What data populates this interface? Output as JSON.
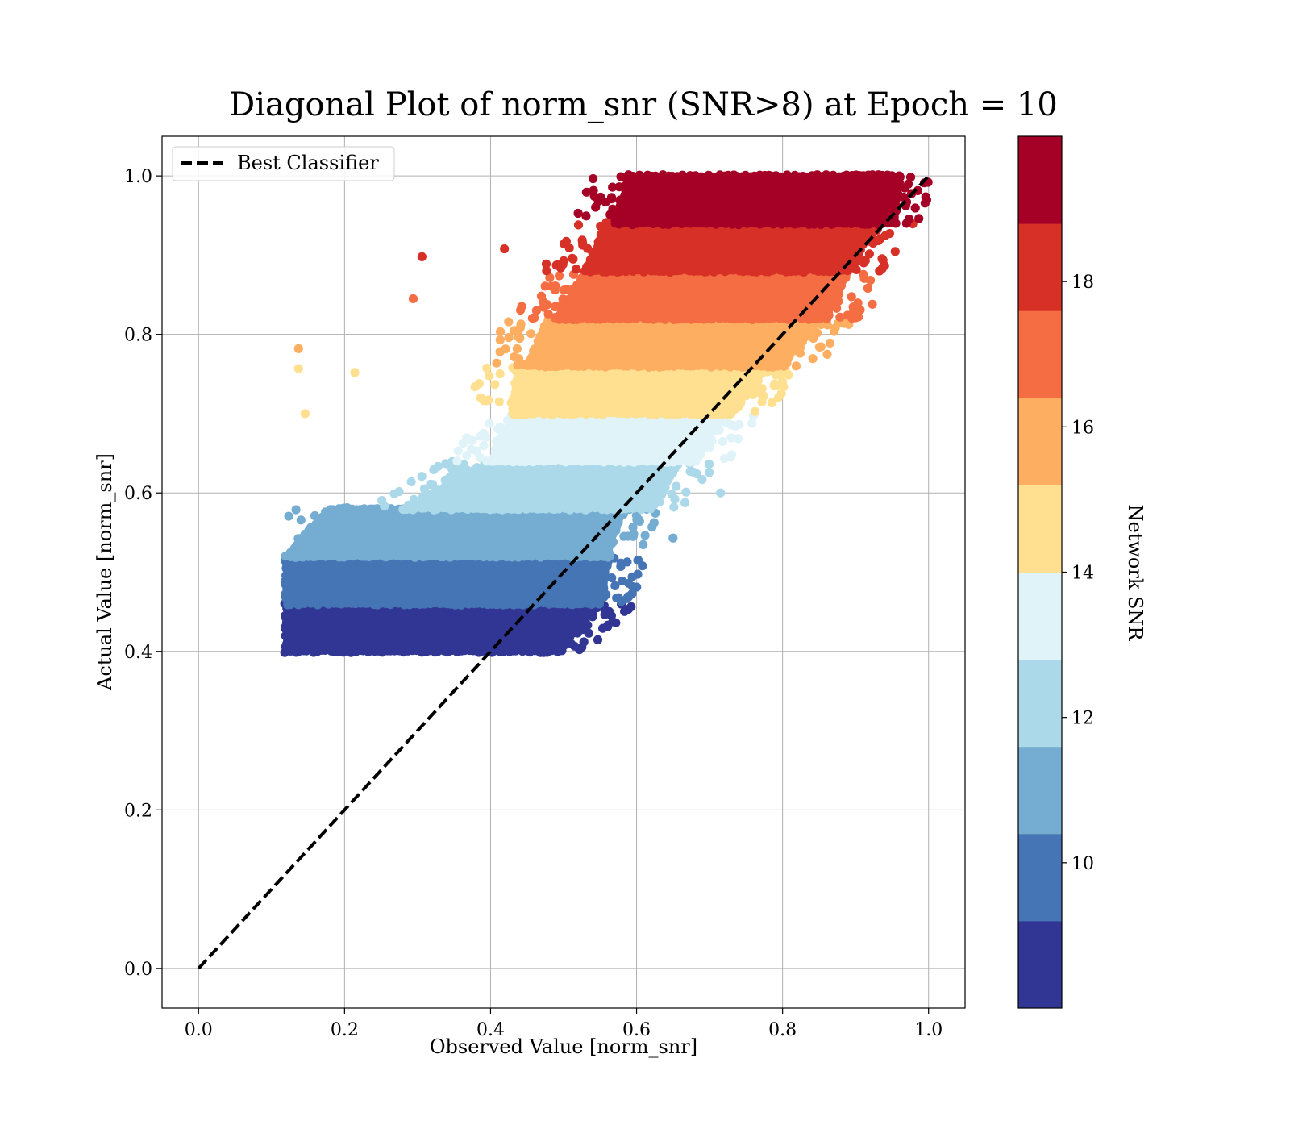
{
  "chart_data": {
    "type": "scatter",
    "title": "Diagonal Plot of norm_snr (SNR>8) at Epoch = 10",
    "xlabel": "Observed Value [norm_snr]",
    "ylabel": "Actual Value [norm_snr]",
    "xlim": [
      -0.05,
      1.05
    ],
    "ylim": [
      -0.05,
      1.05
    ],
    "xticks": [
      "0.0",
      "0.2",
      "0.4",
      "0.6",
      "0.8",
      "1.0"
    ],
    "yticks": [
      "0.0",
      "0.2",
      "0.4",
      "0.6",
      "0.8",
      "1.0"
    ],
    "grid": true,
    "legend": {
      "position": "upper-left",
      "entries": [
        "Best Classifier"
      ]
    },
    "reference_line": {
      "name": "Best Classifier",
      "style": "dashed",
      "color": "#000000",
      "x": [
        0,
        1
      ],
      "y": [
        0,
        1
      ]
    },
    "colorbar": {
      "label": "Network SNR",
      "range": [
        8,
        20
      ],
      "ticks": [
        "10",
        "12",
        "14",
        "16",
        "18"
      ],
      "tick_values": [
        10,
        12,
        14,
        16,
        18
      ],
      "colors": [
        "#313695",
        "#4575b4",
        "#74add1",
        "#abd9e9",
        "#e0f3f8",
        "#fee090",
        "#fdae61",
        "#f46d43",
        "#d73027",
        "#a50026"
      ]
    },
    "bands": [
      {
        "snr": [
          8.0,
          9.2
        ],
        "y": [
          0.4,
          0.46
        ],
        "x_bottom": [
          0.12,
          0.49
        ],
        "x_top": [
          0.12,
          0.55
        ],
        "color": "#313695"
      },
      {
        "snr": [
          9.2,
          10.4
        ],
        "y": [
          0.46,
          0.52
        ],
        "x_bottom": [
          0.12,
          0.55
        ],
        "x_top": [
          0.12,
          0.56
        ],
        "color": "#4575b4"
      },
      {
        "snr": [
          10.4,
          11.6
        ],
        "y": [
          0.52,
          0.58
        ],
        "x_bottom": [
          0.12,
          0.56
        ],
        "x_top": [
          0.18,
          0.58
        ],
        "color": "#74add1"
      },
      {
        "snr": [
          11.6,
          12.8
        ],
        "y": [
          0.58,
          0.64
        ],
        "x_bottom": [
          0.28,
          0.62
        ],
        "x_top": [
          0.4,
          0.66
        ],
        "color": "#abd9e9"
      },
      {
        "snr": [
          12.8,
          14.0
        ],
        "y": [
          0.64,
          0.7
        ],
        "x_bottom": [
          0.4,
          0.68
        ],
        "x_top": [
          0.43,
          0.72
        ],
        "color": "#e0f3f8"
      },
      {
        "snr": [
          14.0,
          15.2
        ],
        "y": [
          0.7,
          0.76
        ],
        "x_bottom": [
          0.43,
          0.73
        ],
        "x_top": [
          0.44,
          0.78
        ],
        "color": "#fee090"
      },
      {
        "snr": [
          15.2,
          16.4
        ],
        "y": [
          0.76,
          0.82
        ],
        "x_bottom": [
          0.45,
          0.8
        ],
        "x_top": [
          0.48,
          0.85
        ],
        "color": "#fdae61"
      },
      {
        "snr": [
          16.4,
          17.6
        ],
        "y": [
          0.82,
          0.88
        ],
        "x_bottom": [
          0.49,
          0.86
        ],
        "x_top": [
          0.53,
          0.89
        ],
        "color": "#f46d43"
      },
      {
        "snr": [
          17.6,
          18.8
        ],
        "y": [
          0.88,
          0.94
        ],
        "x_bottom": [
          0.53,
          0.89
        ],
        "x_top": [
          0.56,
          0.93
        ],
        "color": "#d73027"
      },
      {
        "snr": [
          18.8,
          20.0
        ],
        "y": [
          0.94,
          1.0
        ],
        "x_bottom": [
          0.57,
          0.95
        ],
        "x_top": [
          0.59,
          0.96
        ],
        "color": "#a50026"
      }
    ],
    "outliers": [
      {
        "x": 0.306,
        "y": 0.898,
        "color": "#d73027"
      },
      {
        "x": 0.419,
        "y": 0.908,
        "color": "#d73027"
      },
      {
        "x": 0.294,
        "y": 0.845,
        "color": "#f46d43"
      },
      {
        "x": 0.137,
        "y": 0.782,
        "color": "#fdae61"
      },
      {
        "x": 0.137,
        "y": 0.757,
        "color": "#fee090"
      },
      {
        "x": 0.214,
        "y": 0.752,
        "color": "#fee090"
      },
      {
        "x": 0.146,
        "y": 0.7,
        "color": "#fee090"
      },
      {
        "x": 0.923,
        "y": 0.838,
        "color": "#f46d43"
      },
      {
        "x": 0.715,
        "y": 0.6,
        "color": "#abd9e9"
      },
      {
        "x": 0.65,
        "y": 0.543,
        "color": "#74add1"
      },
      {
        "x": 0.594,
        "y": 0.473,
        "color": "#4575b4"
      },
      {
        "x": 0.51,
        "y": 0.41,
        "color": "#313695"
      },
      {
        "x": 0.96,
        "y": 1.0,
        "color": "#a50026"
      },
      {
        "x": 0.953,
        "y": 0.948,
        "color": "#a50026"
      }
    ]
  }
}
